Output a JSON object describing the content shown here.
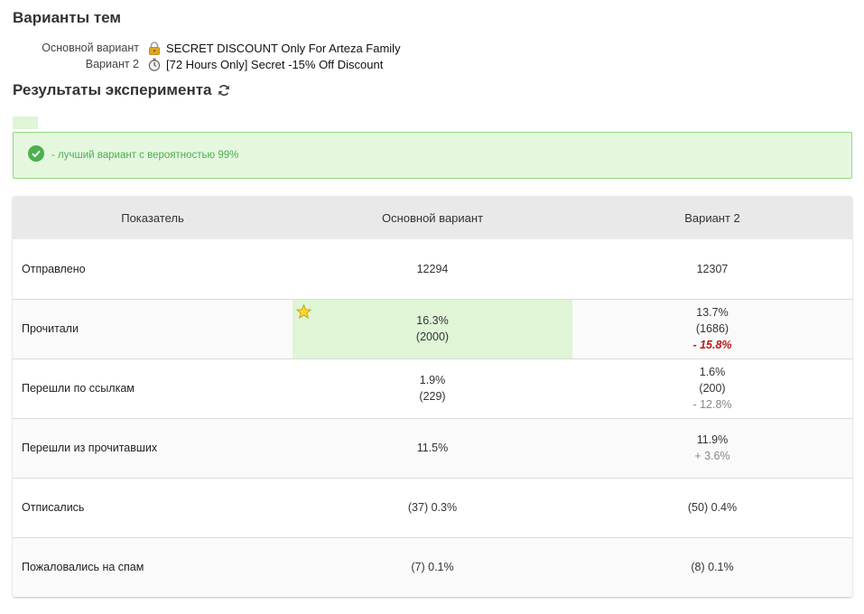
{
  "header": {
    "title": "Варианты тем"
  },
  "subjects": [
    {
      "label": "Основной вариант",
      "icon": "lock-icon",
      "text": "SECRET DISCOUNT Only For Arteza Family"
    },
    {
      "label": "Вариант 2",
      "icon": "stopwatch-icon",
      "text": "[72 Hours Only] Secret -15% Off Discount"
    }
  ],
  "results": {
    "title": "Результаты эксперимента"
  },
  "alert": {
    "text": "- лучший вариант с вероятностью 99%"
  },
  "colors": {
    "winner": "#dff5d6",
    "alert_border": "#8fd97e",
    "alert_text": "#4caf50",
    "negative": "#b71c1c"
  },
  "table": {
    "headers": [
      "Показатель",
      "Основной вариант",
      "Вариант 2"
    ],
    "rows": [
      {
        "metric": "Отправлено",
        "a": [
          "12294"
        ],
        "b": [
          "12307"
        ]
      },
      {
        "metric": "Прочитали",
        "a": [
          "16.3%",
          "(2000)"
        ],
        "b": [
          "13.7%",
          "(1686)",
          "- 15.8%"
        ]
      },
      {
        "metric": "Перешли по ссылкам",
        "a": [
          "1.9%",
          "(229)"
        ],
        "b": [
          "1.6%",
          "(200)",
          "- 12.8%"
        ]
      },
      {
        "metric": "Перешли из прочитавших",
        "a": [
          "11.5%"
        ],
        "b": [
          "11.9%",
          "+ 3.6%"
        ]
      },
      {
        "metric": "Отписались",
        "a": [
          "(37) 0.3%"
        ],
        "b": [
          "(50) 0.4%"
        ]
      },
      {
        "metric": "Пожаловались на спам",
        "a": [
          "(7) 0.1%"
        ],
        "b": [
          "(8) 0.1%"
        ]
      }
    ]
  }
}
